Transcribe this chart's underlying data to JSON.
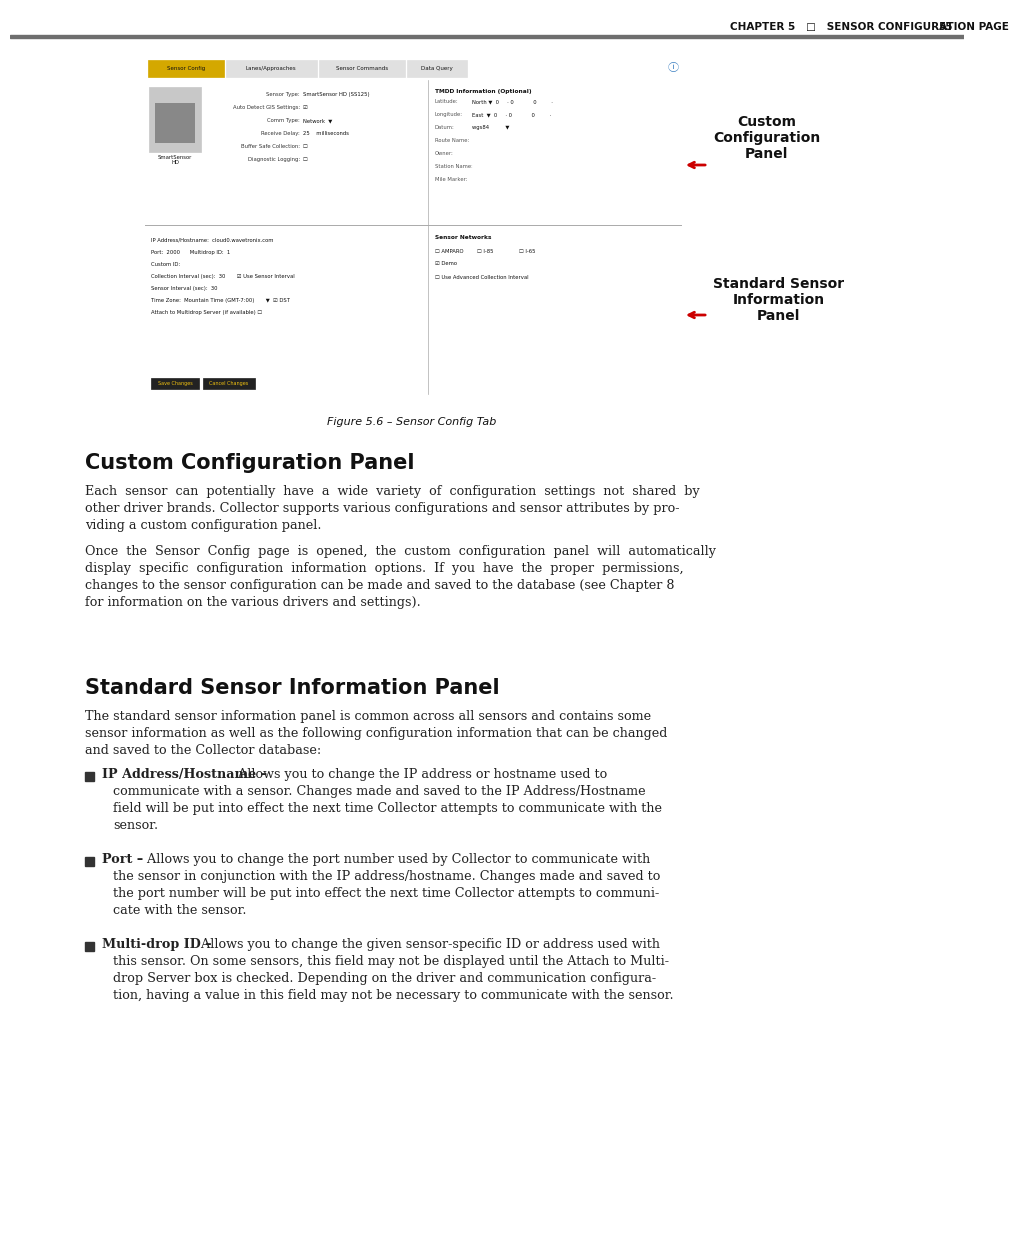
{
  "page_bg": "#ffffff",
  "header_line_color": "#6e6e6e",
  "header_text": "CHAPTER 5   □   SENSOR CONFIGURATION PAGE",
  "header_page": "55",
  "figure_caption": "Figure 5.6 – Sensor Config Tab",
  "section1_title": "Custom Configuration Panel",
  "section1_para1": "Each sensor can potentially have a wide variety of configuration settings not shared by other driver brands. Collector supports various configurations and sensor attributes by pro-\nviding a custom configuration panel.",
  "section1_para2": "Once the Sensor Config page is opened, the custom configuration panel will automatically display specific configuration information options. If you have the proper permissions,\nchanges to the sensor configuration can be made and saved to the database (see Chapter 8\nfor information on the various drivers and settings).",
  "section2_title": "Standard Sensor Information Panel",
  "section2_para1": "The standard sensor information panel is common across all sensors and contains some sensor information as well as the following configuration information that can be changed and saved to the Collector database:",
  "bullet1_bold": "IP Address/Hostname –",
  "bullet1_rest": " Allows you to change the IP address or hostname used to communicate with a sensor. Changes made and saved to the IP Address/Hostname\nfield will be put into effect the next time Collector attempts to communicate with the\nsensor.",
  "bullet2_bold": "Port –",
  "bullet2_rest": " Allows you to change the port number used by Collector to communicate with the sensor in conjunction with the IP address/hostname. Changes made and saved to\nthe port number will be put into effect the next time Collector attempts to communi-\ncate with the sensor.",
  "bullet3_bold": "Multi-drop ID –",
  "bullet3_rest": " Allows you to change the given sensor-specific ID or address used with this sensor. On some sensors, this field may not be displayed until the Attach to Multi-\ndrop Server box is checked. Depending on the driver and communication configura-\ntion, having a value in this field may not be necessary to communicate with the sensor.",
  "annotation1": "Custom\nConfiguration\nPanel",
  "annotation2": "Standard Sensor\nInformation\nPanel",
  "arrow_color": "#cc0000",
  "tab_active_color": "#d4a800",
  "tab_inactive_color": "#e0e0e0"
}
